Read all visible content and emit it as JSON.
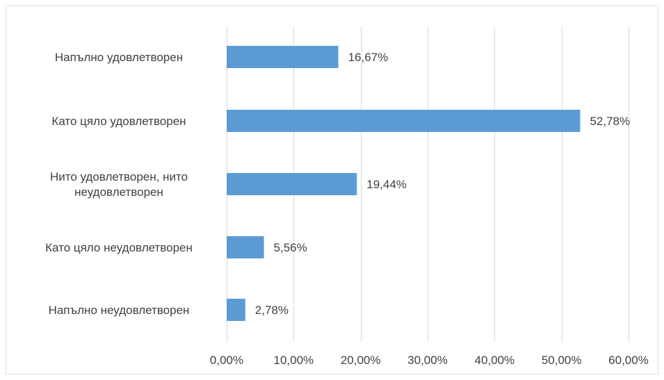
{
  "chart_data": {
    "type": "bar",
    "orientation": "horizontal",
    "title": "",
    "xlabel": "",
    "ylabel": "",
    "categories": [
      [
        "Напълно удовлетворен"
      ],
      [
        "Като цяло удовлетворен"
      ],
      [
        "Нито удовлетворен, нито",
        "неудовлетворен"
      ],
      [
        "Като цяло неудовлетворен"
      ],
      [
        "Напълно неудовлетворен"
      ]
    ],
    "values": [
      16.67,
      52.78,
      19.44,
      5.56,
      2.78
    ],
    "value_labels": [
      "16,67%",
      "52,78%",
      "19,44%",
      "5,56%",
      "2,78%"
    ],
    "xlim": [
      0,
      60
    ],
    "x_ticks": [
      0,
      10,
      20,
      30,
      40,
      50,
      60
    ],
    "x_tick_labels": [
      "0,00%",
      "10,00%",
      "20,00%",
      "30,00%",
      "40,00%",
      "50,00%",
      "60,00%"
    ],
    "grid": true,
    "legend": "none",
    "colors": {
      "bar": "#5B9BD5",
      "grid": "#D9D9D9",
      "text": "#404040",
      "border": "#D9D9D9"
    }
  }
}
